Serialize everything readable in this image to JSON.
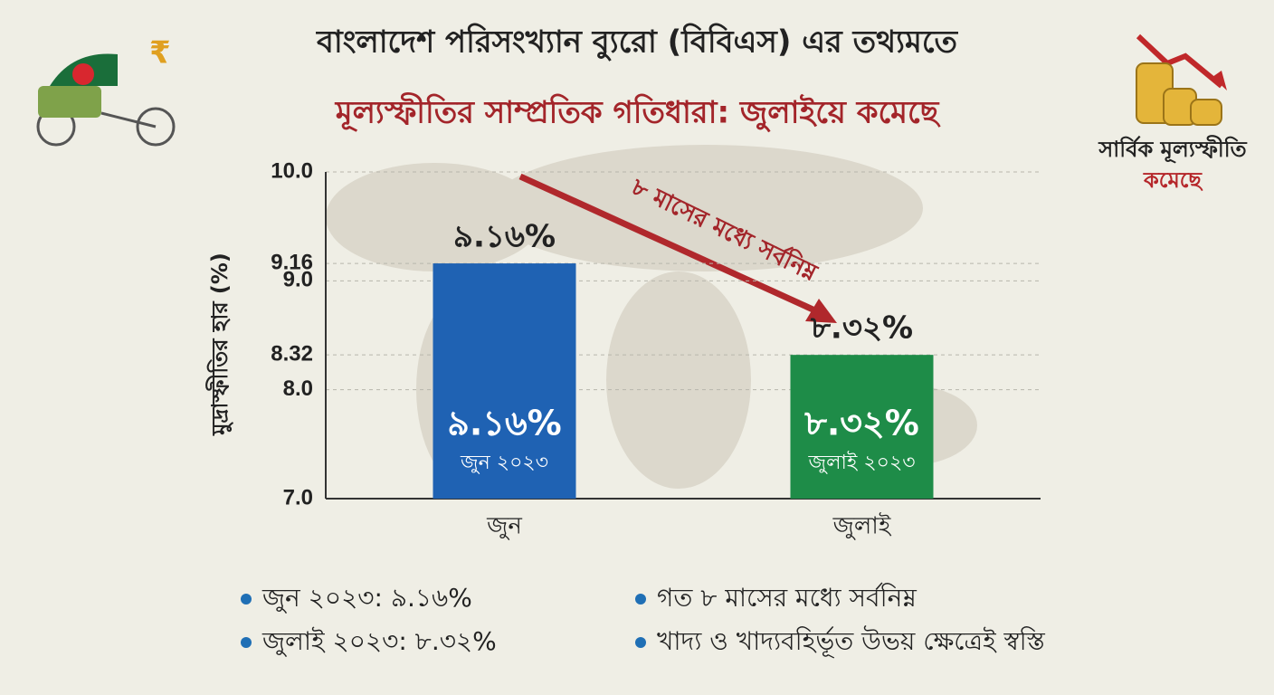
{
  "chart_data": {
    "type": "bar",
    "title": "বাংলাদেশ পরিসংখ্যান ব্যুরো (বিবিএস) এর তথ্যমতে",
    "subtitle": "মূল্যস্ফীতির সাম্প্রতিক গতিধারা: জুলাইয়ে কমেছে",
    "y_label": "মুদ্রাস্ফীতির হার (%)",
    "categories": [
      "জুন",
      "জুলাই"
    ],
    "values": [
      9.16,
      8.32
    ],
    "value_labels": [
      "৯.১৬%",
      "৮.৩২%"
    ],
    "bar_sublabels": [
      "জুন ২০২৩",
      "জুলাই ২০২৩"
    ],
    "colors": [
      "#1f62b3",
      "#1e8c48"
    ],
    "ylim": [
      7,
      10
    ],
    "yticks": [
      {
        "value": 7,
        "label": "7.0"
      },
      {
        "value": 8,
        "label": "8.0"
      },
      8.32,
      {
        "value": 9,
        "label": "9.0"
      },
      9.16,
      {
        "value": 10,
        "label": "10.0"
      }
    ],
    "grid": true,
    "annotation": "৮ মাসের মধ্যে সর্বনিম্ন",
    "badge": {
      "title": "সার্বিক মূল্যস্ফীতি",
      "status": "কমেছে"
    },
    "notes": [
      "জুন ২০২৩: ৯.১৬%",
      "গত ৮ মাসের মধ্যে সর্বনিম্ন",
      "জুলাই ২০২৩: ৮.৩২%",
      "খাদ্য ও খাদ্যবহির্ভূত উভয় ক্ষেত্রেই স্বস্তি"
    ]
  }
}
